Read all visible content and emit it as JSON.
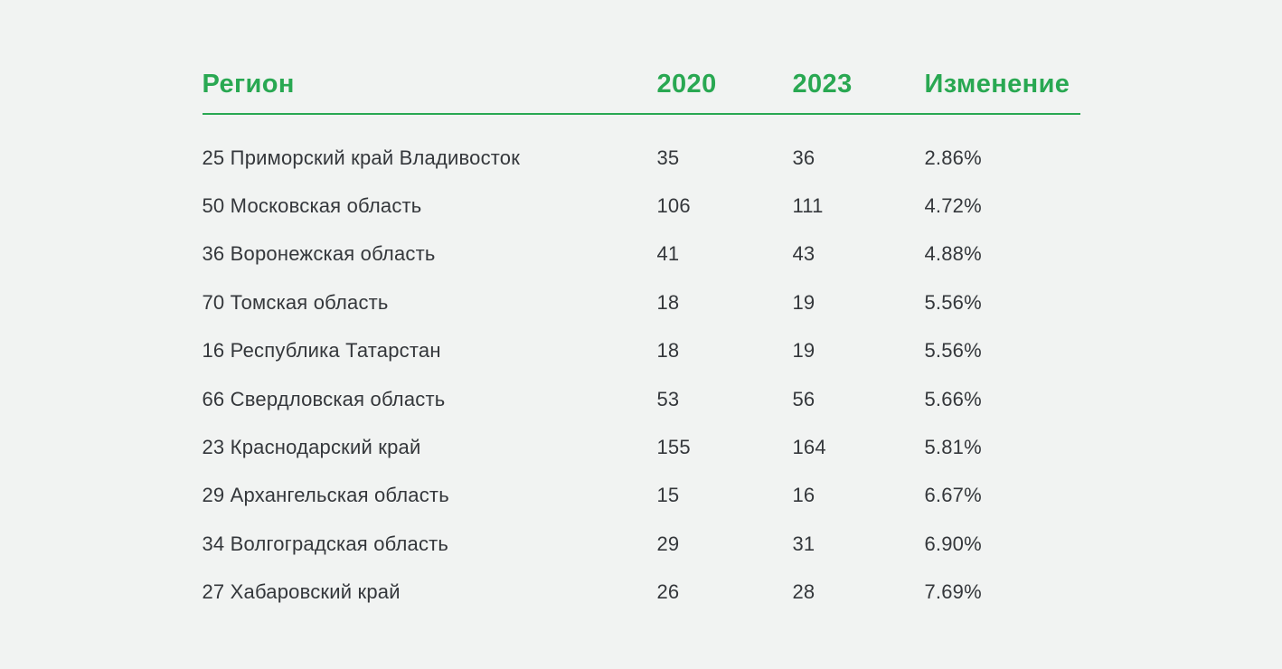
{
  "theme": {
    "background": "#f1f3f2",
    "accent_green": "#29a852",
    "text_color": "#34373b"
  },
  "table": {
    "headers": {
      "region": "Регион",
      "year_2020": "2020",
      "year_2023": "2023",
      "change": "Изменение"
    },
    "rows": [
      {
        "region": "25 Приморский край Владивосток",
        "y2020": "35",
        "y2023": "36",
        "change": "2.86%"
      },
      {
        "region": "50 Московская область",
        "y2020": "106",
        "y2023": "111",
        "change": "4.72%"
      },
      {
        "region": "36 Воронежская область",
        "y2020": "41",
        "y2023": "43",
        "change": "4.88%"
      },
      {
        "region": "70 Томская область",
        "y2020": "18",
        "y2023": "19",
        "change": "5.56%"
      },
      {
        "region": "16 Республика Татарстан",
        "y2020": "18",
        "y2023": "19",
        "change": "5.56%"
      },
      {
        "region": "66 Свердловская область",
        "y2020": "53",
        "y2023": "56",
        "change": "5.66%"
      },
      {
        "region": "23 Краснодарский край",
        "y2020": "155",
        "y2023": "164",
        "change": "5.81%"
      },
      {
        "region": "29 Архангельская область",
        "y2020": "15",
        "y2023": "16",
        "change": "6.67%"
      },
      {
        "region": "34 Волгоградская область",
        "y2020": "29",
        "y2023": "31",
        "change": "6.90%"
      },
      {
        "region": "27 Хабаровский край",
        "y2020": "26",
        "y2023": "28",
        "change": "7.69%"
      }
    ]
  },
  "chart_data": {
    "type": "table",
    "title": "",
    "columns": [
      "Регион",
      "2020",
      "2023",
      "Изменение"
    ],
    "rows": [
      [
        "25 Приморский край Владивосток",
        35,
        36,
        "2.86%"
      ],
      [
        "50 Московская область",
        106,
        111,
        "4.72%"
      ],
      [
        "36 Воронежская область",
        41,
        43,
        "4.88%"
      ],
      [
        "70 Томская область",
        18,
        19,
        "5.56%"
      ],
      [
        "16 Республика Татарстан",
        18,
        19,
        "5.56%"
      ],
      [
        "66 Свердловская область",
        53,
        56,
        "5.66%"
      ],
      [
        "23 Краснодарский край",
        155,
        164,
        "5.81%"
      ],
      [
        "29 Архангельская область",
        15,
        16,
        "6.67%"
      ],
      [
        "34 Волгоградская область",
        29,
        31,
        "6.90%"
      ],
      [
        "27 Хабаровский край",
        26,
        28,
        "7.69%"
      ]
    ]
  }
}
